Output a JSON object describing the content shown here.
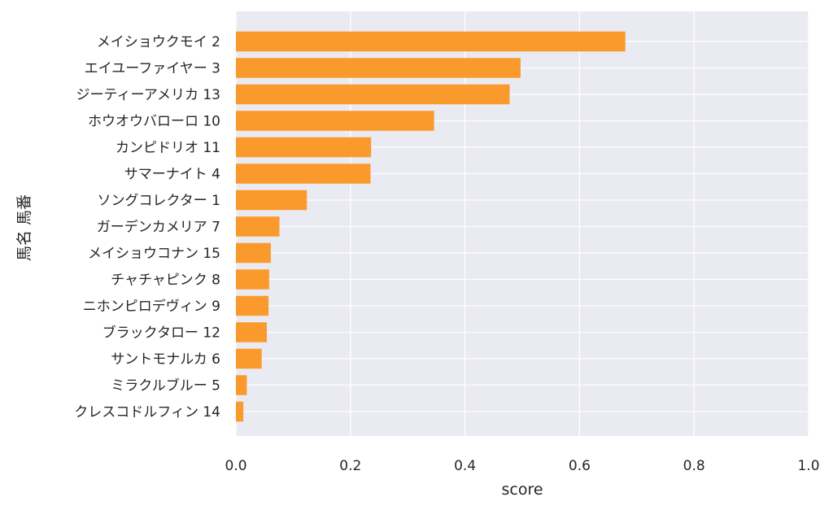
{
  "chart_data": {
    "type": "bar",
    "orientation": "horizontal",
    "title": "",
    "xlabel": "score",
    "ylabel": "馬名 馬番",
    "xlim": [
      0,
      1.0
    ],
    "xticks": [
      "0.0",
      "0.2",
      "0.4",
      "0.6",
      "0.8",
      "1.0"
    ],
    "grid": true,
    "bar_color": "#fb9a2c",
    "background_color": "#eaeaf2",
    "categories": [
      "メイショウクモイ 2",
      "エイユーファイヤー 3",
      "ジーティーアメリカ 13",
      "ホウオウバローロ 10",
      "カンピドリオ 11",
      "サマーナイト 4",
      "ソングコレクター 1",
      "ガーデンカメリア 7",
      "メイショウコナン 15",
      "チャチャピンク 8",
      "ニホンピロデヴィン 9",
      "ブラックタロー 12",
      "サントモナルカ 6",
      "ミラクルブルー 5",
      "クレスコドルフィン 14"
    ],
    "values": [
      0.68,
      0.497,
      0.478,
      0.346,
      0.236,
      0.235,
      0.124,
      0.076,
      0.061,
      0.058,
      0.057,
      0.054,
      0.045,
      0.019,
      0.013
    ]
  }
}
